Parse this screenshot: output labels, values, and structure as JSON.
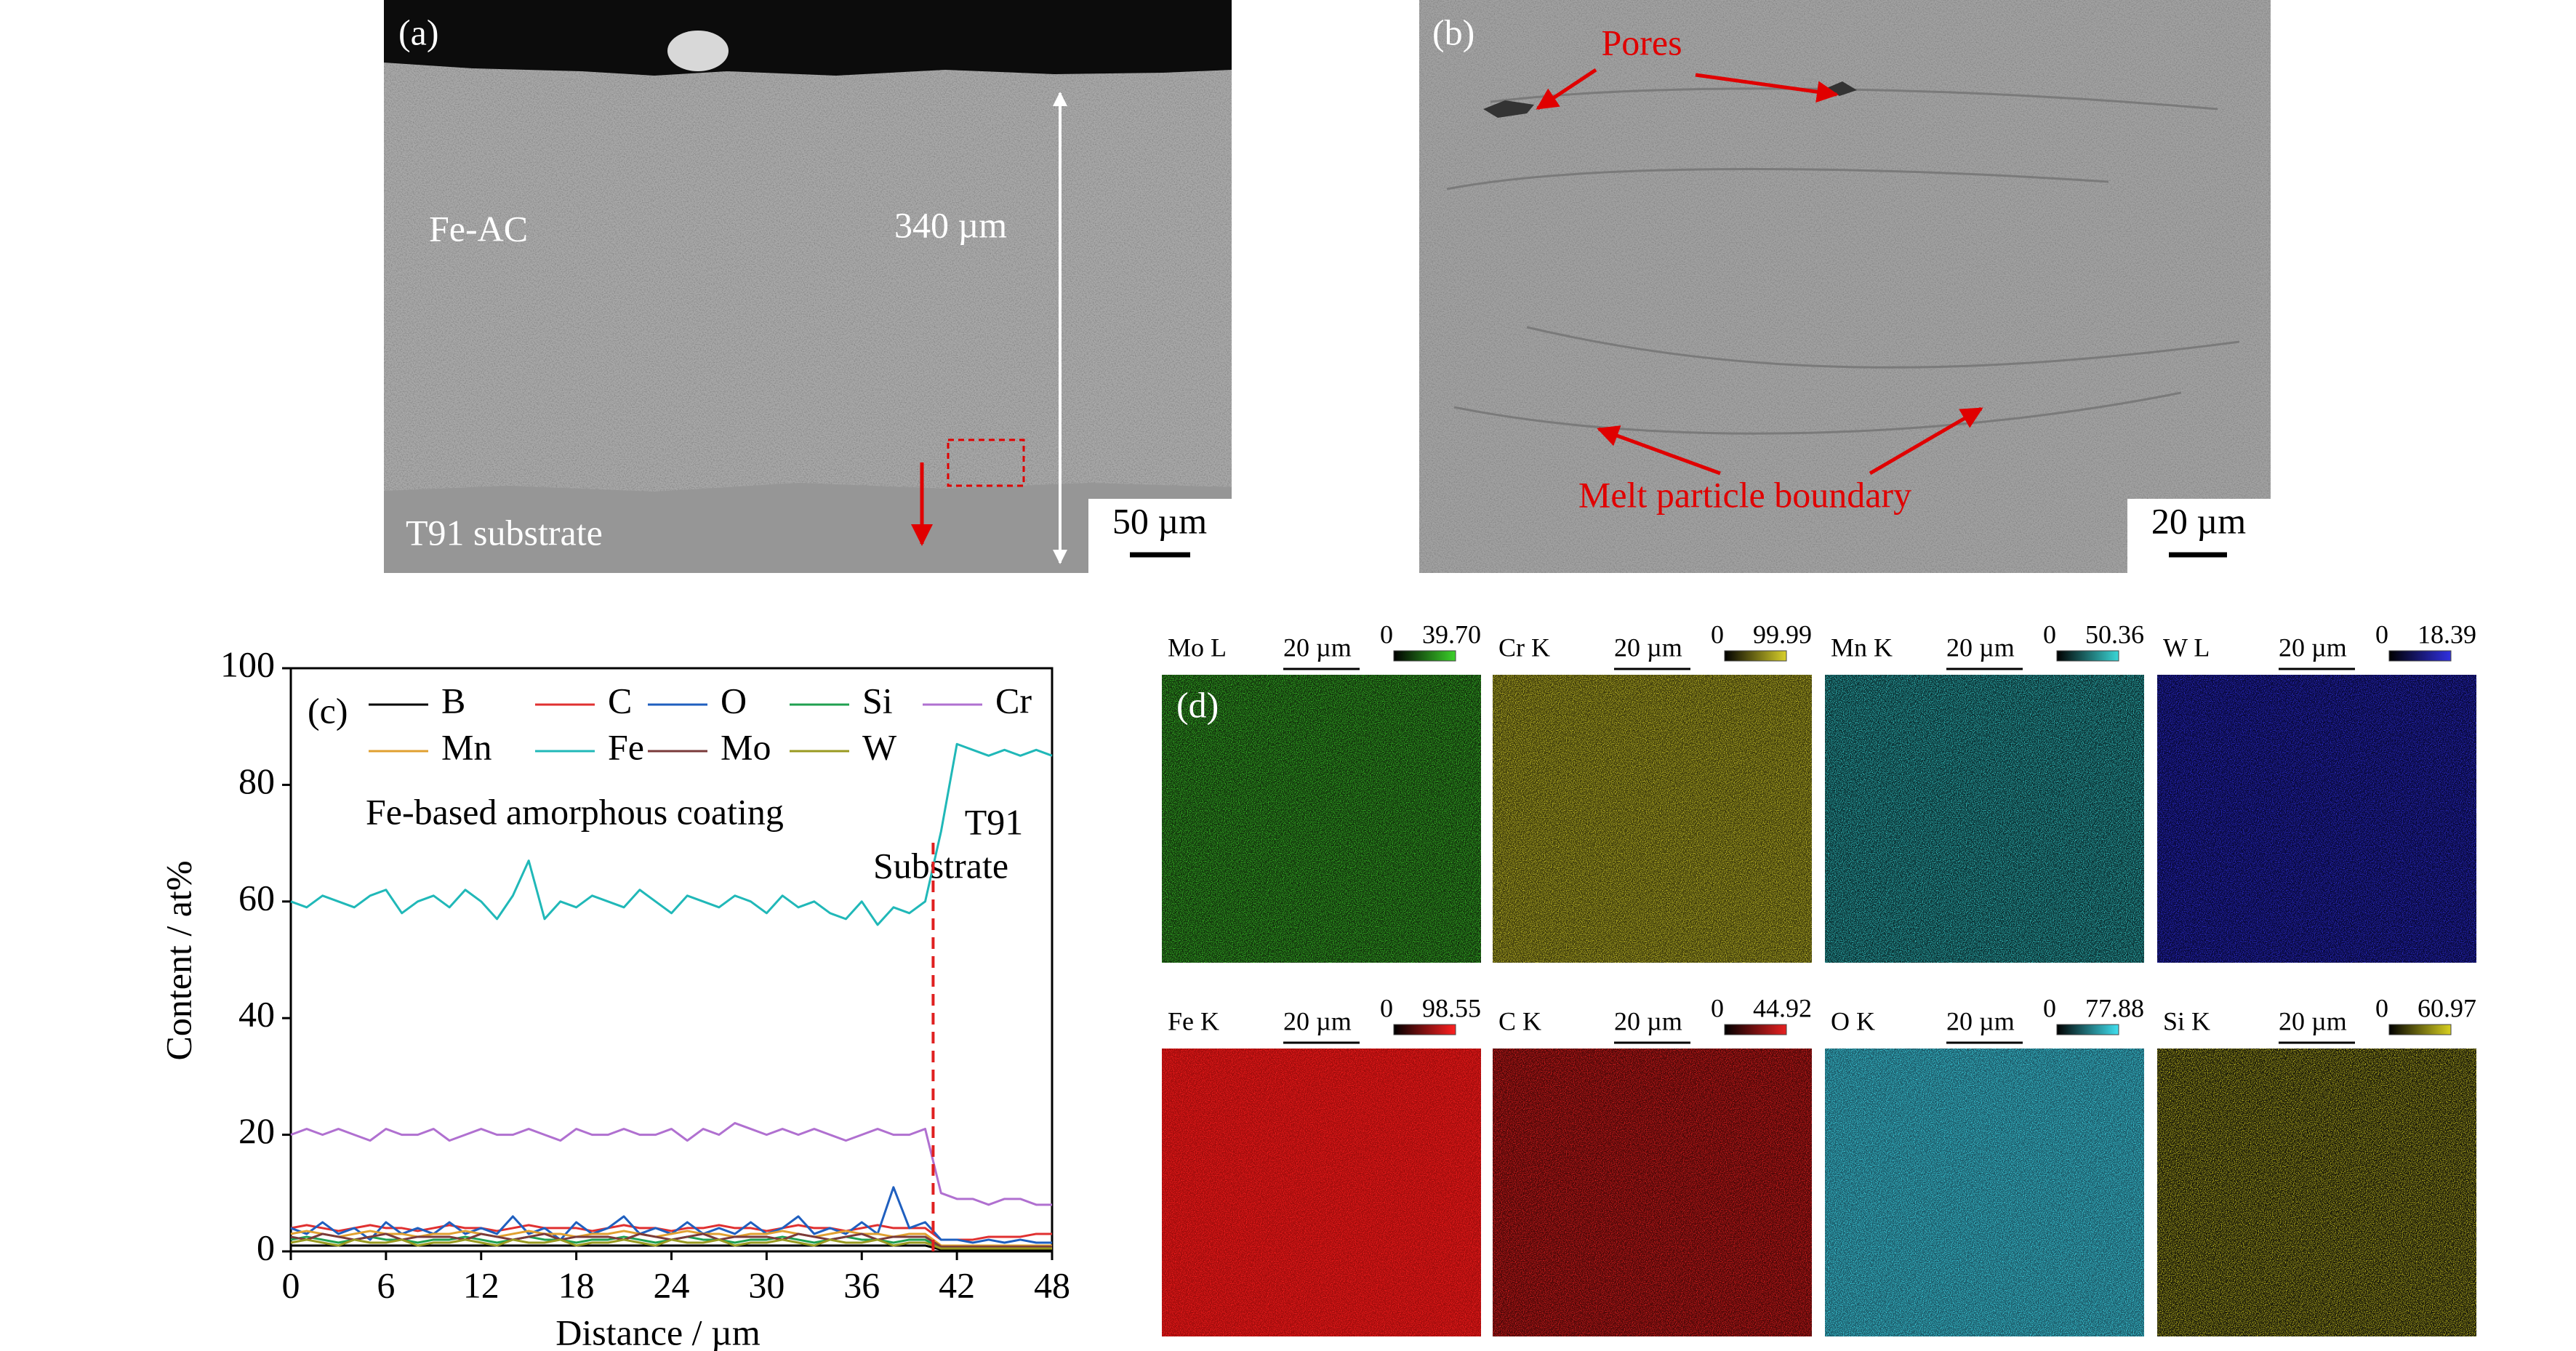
{
  "panels": {
    "a": {
      "label": "(a)",
      "coating": "Fe-AC",
      "thickness": "340 µm",
      "substrate": "T91 substrate",
      "scale": "50 µm"
    },
    "b": {
      "label": "(b)",
      "pores": "Pores",
      "boundary": "Melt particle boundary",
      "scale": "20 µm"
    },
    "d": {
      "label": "(d)",
      "maps": [
        {
          "element": "Mo L",
          "scale": "20 µm",
          "min": "0",
          "max": "39.70",
          "color": "#3cd12a",
          "base": "#12300c"
        },
        {
          "element": "Cr K",
          "scale": "20 µm",
          "min": "0",
          "max": "99.99",
          "color": "#d8d02a",
          "base": "#3c3a0c"
        },
        {
          "element": "Mn K",
          "scale": "20 µm",
          "min": "0",
          "max": "50.36",
          "color": "#3ad6d6",
          "base": "#0a2e30"
        },
        {
          "element": "W L",
          "scale": "20 µm",
          "min": "0",
          "max": "18.39",
          "color": "#3030e0",
          "base": "#080838"
        },
        {
          "element": "Fe K",
          "scale": "20 µm",
          "min": "0",
          "max": "98.55",
          "color": "#ff2020",
          "base": "#a00c0c"
        },
        {
          "element": "C K",
          "scale": "20 µm",
          "min": "0",
          "max": "44.92",
          "color": "#e82020",
          "base": "#4c0808"
        },
        {
          "element": "O K",
          "scale": "20 µm",
          "min": "0",
          "max": "77.88",
          "color": "#40e0f0",
          "base": "#1c5866"
        },
        {
          "element": "Si K",
          "scale": "20 µm",
          "min": "0",
          "max": "60.97",
          "color": "#d8d020",
          "base": "#16160a"
        }
      ]
    }
  },
  "chart_data": {
    "type": "line",
    "label": "(c)",
    "xlabel": "Distance / µm",
    "ylabel": "Content / at%",
    "annotations": [
      "Fe-based amorphous coating",
      "T91",
      "Substrate"
    ],
    "divider_x": 40.5,
    "divider_color": "#e02020",
    "xlim": [
      0,
      48
    ],
    "ylim": [
      0,
      100
    ],
    "xticks": [
      0,
      6,
      12,
      18,
      24,
      30,
      36,
      42,
      48
    ],
    "yticks": [
      0,
      20,
      40,
      60,
      80,
      100
    ],
    "x": [
      0,
      1,
      2,
      3,
      4,
      5,
      6,
      7,
      8,
      9,
      10,
      11,
      12,
      13,
      14,
      15,
      16,
      17,
      18,
      19,
      20,
      21,
      22,
      23,
      24,
      25,
      26,
      27,
      28,
      29,
      30,
      31,
      32,
      33,
      34,
      35,
      36,
      37,
      38,
      39,
      40,
      41,
      42,
      43,
      44,
      45,
      46,
      47,
      48
    ],
    "series": [
      {
        "name": "B",
        "color": "#000000",
        "values": [
          1,
          1,
          1,
          1,
          1,
          1,
          1,
          1,
          1,
          1,
          1,
          1,
          1,
          1,
          1,
          1,
          1,
          1,
          1,
          1,
          1,
          1,
          1,
          1,
          1,
          1,
          1,
          1,
          1,
          1,
          1,
          1,
          1,
          1,
          1,
          1,
          1,
          1,
          1,
          1,
          1,
          0.3,
          0.3,
          0.3,
          0.3,
          0.3,
          0.3,
          0.3,
          0.3
        ]
      },
      {
        "name": "C",
        "color": "#e03030",
        "values": [
          4,
          4.5,
          4,
          3.5,
          4,
          4.5,
          4,
          4,
          3.5,
          4,
          4.5,
          4,
          4,
          3.5,
          4,
          4.5,
          4,
          4,
          4,
          3.5,
          4,
          4.5,
          4,
          4,
          3.5,
          4,
          4,
          4.5,
          4,
          4,
          3.5,
          4,
          4.5,
          4,
          4,
          3.5,
          4,
          4.5,
          4,
          4,
          4,
          2,
          2,
          2,
          2.5,
          2.5,
          2.5,
          3,
          3
        ]
      },
      {
        "name": "O",
        "color": "#1f5fbf",
        "values": [
          4,
          3,
          5,
          3,
          4,
          2,
          5,
          3,
          4,
          3,
          5,
          3,
          4,
          3,
          6,
          3,
          4,
          2,
          5,
          3,
          4,
          6,
          3,
          4,
          3,
          5,
          3,
          4,
          3,
          5,
          3,
          4,
          6,
          3,
          4,
          3,
          5,
          3,
          11,
          4,
          5,
          2,
          2,
          1.5,
          2,
          1.5,
          2,
          1.5,
          1.5
        ]
      },
      {
        "name": "Si",
        "color": "#20a050",
        "values": [
          2,
          2.5,
          2,
          1.5,
          2,
          2.5,
          2,
          2,
          1.5,
          2,
          2,
          2.5,
          2,
          1.5,
          2,
          2.5,
          2,
          2,
          1.5,
          2,
          2,
          2.5,
          2,
          1.5,
          2,
          2.5,
          2,
          2,
          1.5,
          2,
          2,
          2.5,
          2,
          1.5,
          2,
          2.5,
          2,
          2,
          1.5,
          2,
          2,
          0.5,
          0.5,
          0.5,
          0.5,
          0.5,
          0.5,
          0.5,
          0.5
        ]
      },
      {
        "name": "Cr",
        "color": "#b070d0",
        "values": [
          20,
          21,
          20,
          21,
          20,
          19,
          21,
          20,
          20,
          21,
          19,
          20,
          21,
          20,
          20,
          21,
          20,
          19,
          21,
          20,
          20,
          21,
          20,
          20,
          21,
          19,
          21,
          20,
          22,
          21,
          20,
          21,
          20,
          21,
          20,
          19,
          20,
          21,
          20,
          20,
          21,
          10,
          9,
          9,
          8,
          9,
          9,
          8,
          8
        ]
      },
      {
        "name": "Mn",
        "color": "#e0a030",
        "values": [
          3,
          3.5,
          3,
          2.5,
          3,
          3.5,
          3,
          3,
          2.5,
          3,
          3,
          3.5,
          3,
          2.5,
          3,
          3.5,
          3,
          3,
          2.5,
          3,
          3,
          3.5,
          3,
          2.5,
          3,
          3.5,
          3,
          3,
          2.5,
          3,
          3,
          3.5,
          3,
          2.5,
          3,
          3.5,
          3,
          3,
          2.5,
          3,
          3,
          1,
          1,
          1,
          1,
          1,
          1,
          1,
          1
        ]
      },
      {
        "name": "Fe",
        "color": "#20b8b8",
        "values": [
          60,
          59,
          61,
          60,
          59,
          61,
          62,
          58,
          60,
          61,
          59,
          62,
          60,
          57,
          61,
          67,
          57,
          60,
          59,
          61,
          60,
          59,
          62,
          60,
          58,
          61,
          60,
          59,
          61,
          60,
          58,
          61,
          59,
          60,
          58,
          57,
          60,
          56,
          59,
          58,
          60,
          72,
          87,
          86,
          85,
          86,
          85,
          86,
          85
        ]
      },
      {
        "name": "Mo",
        "color": "#7a3a3a",
        "values": [
          2.5,
          2,
          3,
          2.5,
          2,
          2.5,
          3,
          2,
          2.5,
          2.5,
          2.5,
          2,
          3,
          2.5,
          2,
          2.5,
          3,
          2,
          2.5,
          2.5,
          2.5,
          2,
          3,
          2.5,
          2,
          2.5,
          3,
          2,
          2.5,
          2.5,
          2.5,
          2,
          3,
          2.5,
          2,
          2.5,
          3,
          2,
          2.5,
          2.5,
          2.5,
          0.8,
          0.8,
          0.8,
          0.8,
          0.8,
          0.8,
          0.8,
          0.8
        ]
      },
      {
        "name": "W",
        "color": "#9a9a20",
        "values": [
          1.5,
          2,
          1.5,
          1,
          2,
          1.5,
          1.5,
          2,
          1,
          1.5,
          1.5,
          2,
          1.5,
          1,
          2,
          1.5,
          1.5,
          2,
          1,
          1.5,
          1.5,
          2,
          1.5,
          1,
          2,
          1.5,
          1.5,
          2,
          1,
          1.5,
          1.5,
          2,
          1.5,
          1,
          2,
          1.5,
          1.5,
          2,
          1,
          1.5,
          1.5,
          0.5,
          0.5,
          0.5,
          0.5,
          0.5,
          0.5,
          0.5,
          0.5
        ]
      }
    ]
  }
}
